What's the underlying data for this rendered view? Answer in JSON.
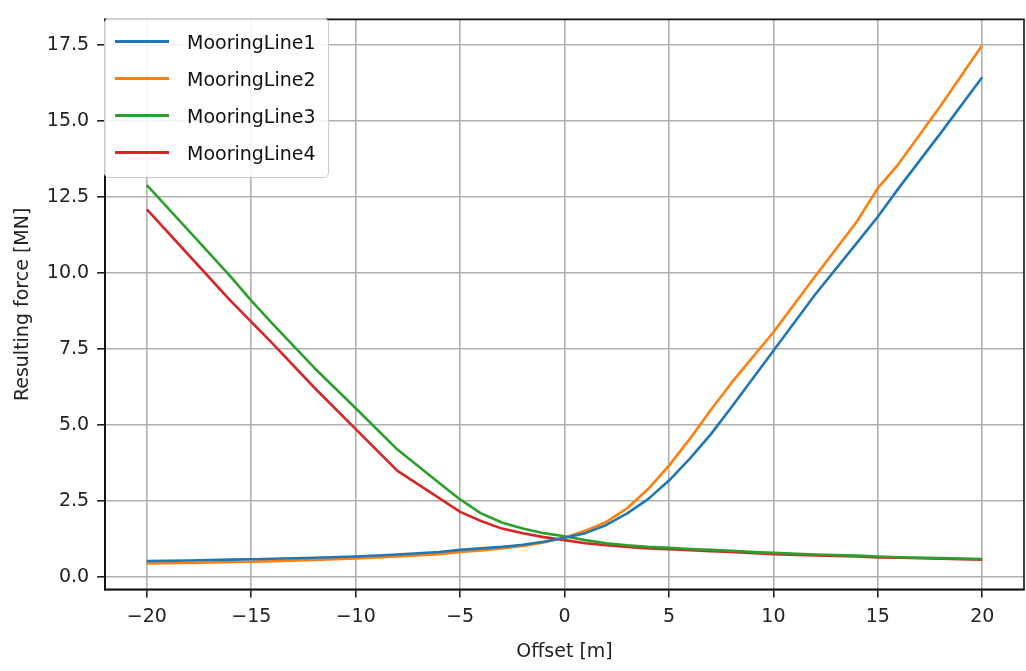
{
  "chart_data": {
    "type": "line",
    "xlabel": "Offset [m]",
    "ylabel": "Resulting force [MN]",
    "x": [
      -20,
      -18,
      -16,
      -15,
      -14,
      -12,
      -10,
      -8,
      -6,
      -5,
      -4,
      -3,
      -2,
      -1,
      0,
      1,
      2,
      3,
      4,
      5,
      6,
      7,
      8,
      10,
      12,
      14,
      15,
      16,
      18,
      20
    ],
    "series": [
      {
        "name": "MooringLine1",
        "color": "#1f77b4",
        "values": [
          0.53,
          0.55,
          0.58,
          0.59,
          0.61,
          0.64,
          0.68,
          0.75,
          0.83,
          0.9,
          0.95,
          1.0,
          1.07,
          1.17,
          1.3,
          1.45,
          1.72,
          2.1,
          2.57,
          3.18,
          3.9,
          4.7,
          5.6,
          7.45,
          9.3,
          11.0,
          11.86,
          12.8,
          14.6,
          16.45
        ]
      },
      {
        "name": "MooringLine2",
        "color": "#ff7f0e",
        "values": [
          0.45,
          0.47,
          0.5,
          0.51,
          0.53,
          0.57,
          0.62,
          0.68,
          0.76,
          0.83,
          0.88,
          0.95,
          1.03,
          1.14,
          1.3,
          1.53,
          1.82,
          2.27,
          2.9,
          3.67,
          4.55,
          5.5,
          6.4,
          8.06,
          9.9,
          11.7,
          12.8,
          13.6,
          15.5,
          17.5
        ]
      },
      {
        "name": "MooringLine3",
        "color": "#2ca02c",
        "values": [
          12.9,
          11.4,
          9.9,
          9.1,
          8.35,
          6.9,
          5.56,
          4.2,
          3.1,
          2.56,
          2.1,
          1.8,
          1.6,
          1.45,
          1.35,
          1.22,
          1.12,
          1.05,
          1.0,
          0.97,
          0.93,
          0.9,
          0.87,
          0.8,
          0.75,
          0.71,
          0.68,
          0.66,
          0.63,
          0.6
        ]
      },
      {
        "name": "MooringLine4",
        "color": "#d62728",
        "values": [
          12.1,
          10.6,
          9.1,
          8.4,
          7.7,
          6.25,
          4.87,
          3.5,
          2.6,
          2.15,
          1.85,
          1.6,
          1.45,
          1.32,
          1.22,
          1.12,
          1.05,
          1.0,
          0.95,
          0.92,
          0.89,
          0.86,
          0.83,
          0.76,
          0.72,
          0.68,
          0.65,
          0.64,
          0.61,
          0.58
        ]
      }
    ],
    "xlim": [
      -22,
      22
    ],
    "xticks": [
      -20,
      -15,
      -10,
      -5,
      0,
      5,
      10,
      15,
      20
    ],
    "ylim": [
      -0.4,
      18.35
    ],
    "yticks": [
      {
        "value": 0,
        "label": "0.0"
      },
      2.5,
      {
        "value": 5,
        "label": "5.0"
      },
      7.5,
      {
        "value": 10,
        "label": "10.0"
      },
      12.5,
      {
        "value": 15,
        "label": "15.0"
      },
      17.5
    ],
    "grid": true,
    "legend": "top left",
    "marker": "none",
    "line_style": "solid"
  }
}
